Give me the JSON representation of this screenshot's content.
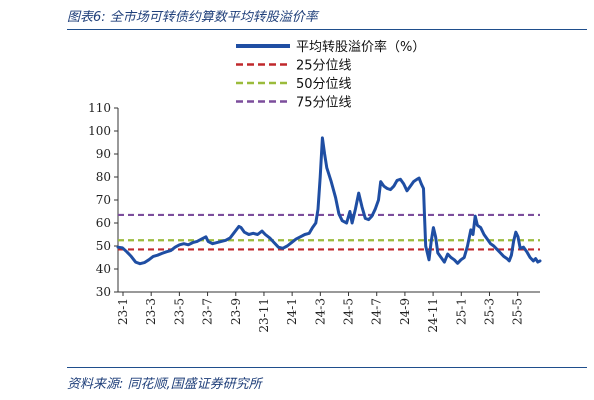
{
  "figure": {
    "title": "图表6:  全市场可转债约算数平均转股溢价率",
    "source": "资料来源:  同花顺,国盛证券研究所"
  },
  "chart_data": {
    "type": "line",
    "title": "图表6:  全市场可转债约算数平均转股溢价率",
    "xlabel": "",
    "ylabel": "",
    "ylim": [
      30,
      110
    ],
    "yticks": [
      30,
      40,
      50,
      60,
      70,
      80,
      90,
      100,
      110
    ],
    "xticks": [
      "23-1",
      "23-3",
      "23-5",
      "23-7",
      "23-9",
      "23-11",
      "24-1",
      "24-3",
      "24-5",
      "24-7",
      "24-9",
      "24-11",
      "25-1",
      "25-3",
      "25-5"
    ],
    "legend_position": "top",
    "grid": false,
    "series": [
      {
        "name": "平均转股溢价率（%）",
        "style": "solid",
        "color": "#1f4ea3",
        "points": [
          [
            0.0,
            49.5
          ],
          [
            0.2,
            49.2
          ],
          [
            0.4,
            47.5
          ],
          [
            0.6,
            45.5
          ],
          [
            0.8,
            43.0
          ],
          [
            1.0,
            42.3
          ],
          [
            1.2,
            42.8
          ],
          [
            1.4,
            44.0
          ],
          [
            1.6,
            45.5
          ],
          [
            1.8,
            46.0
          ],
          [
            2.0,
            46.8
          ],
          [
            2.2,
            47.5
          ],
          [
            2.4,
            48.0
          ],
          [
            2.6,
            49.5
          ],
          [
            2.8,
            50.5
          ],
          [
            3.0,
            51.0
          ],
          [
            3.2,
            50.5
          ],
          [
            3.4,
            51.5
          ],
          [
            3.6,
            52.0
          ],
          [
            3.8,
            53.0
          ],
          [
            4.0,
            54.0
          ],
          [
            4.1,
            52.0
          ],
          [
            4.3,
            51.0
          ],
          [
            4.5,
            51.5
          ],
          [
            4.7,
            52.0
          ],
          [
            4.9,
            52.5
          ],
          [
            5.1,
            53.5
          ],
          [
            5.3,
            56.0
          ],
          [
            5.5,
            58.5
          ],
          [
            5.6,
            58.0
          ],
          [
            5.75,
            56.0
          ],
          [
            5.95,
            55.0
          ],
          [
            6.15,
            55.5
          ],
          [
            6.35,
            55.0
          ],
          [
            6.55,
            56.5
          ],
          [
            6.7,
            55.0
          ],
          [
            6.9,
            53.5
          ],
          [
            7.1,
            51.5
          ],
          [
            7.3,
            49.5
          ],
          [
            7.5,
            49.0
          ],
          [
            7.7,
            50.0
          ],
          [
            7.9,
            51.5
          ],
          [
            8.1,
            53.0
          ],
          [
            8.3,
            54.0
          ],
          [
            8.5,
            55.0
          ],
          [
            8.7,
            55.5
          ],
          [
            8.85,
            58.0
          ],
          [
            9.0,
            60.0
          ],
          [
            9.1,
            66.0
          ],
          [
            9.2,
            80.0
          ],
          [
            9.3,
            97.0
          ],
          [
            9.4,
            90.0
          ],
          [
            9.5,
            84.0
          ],
          [
            9.7,
            78.0
          ],
          [
            9.9,
            71.0
          ],
          [
            10.05,
            64.0
          ],
          [
            10.2,
            61.0
          ],
          [
            10.4,
            60.0
          ],
          [
            10.55,
            65.0
          ],
          [
            10.65,
            60.0
          ],
          [
            10.8,
            66.0
          ],
          [
            10.95,
            73.0
          ],
          [
            11.1,
            67.0
          ],
          [
            11.25,
            62.0
          ],
          [
            11.4,
            61.5
          ],
          [
            11.55,
            63.0
          ],
          [
            11.7,
            66.0
          ],
          [
            11.85,
            70.0
          ],
          [
            11.95,
            78.0
          ],
          [
            12.1,
            76.0
          ],
          [
            12.25,
            75.0
          ],
          [
            12.4,
            74.5
          ],
          [
            12.55,
            76.0
          ],
          [
            12.7,
            78.5
          ],
          [
            12.85,
            79.0
          ],
          [
            13.0,
            77.0
          ],
          [
            13.15,
            74.0
          ],
          [
            13.3,
            76.0
          ],
          [
            13.45,
            78.0
          ],
          [
            13.6,
            79.0
          ],
          [
            13.7,
            79.5
          ],
          [
            13.8,
            77.0
          ],
          [
            13.9,
            75.0
          ],
          [
            13.95,
            62.0
          ],
          [
            14.0,
            50.0
          ],
          [
            14.05,
            48.0
          ],
          [
            14.15,
            44.0
          ],
          [
            14.25,
            52.0
          ],
          [
            14.35,
            58.0
          ],
          [
            14.45,
            54.0
          ],
          [
            14.55,
            47.0
          ],
          [
            14.7,
            45.0
          ],
          [
            14.85,
            43.0
          ],
          [
            15.0,
            46.5
          ],
          [
            15.15,
            45.0
          ],
          [
            15.3,
            44.0
          ],
          [
            15.45,
            42.5
          ],
          [
            15.6,
            44.0
          ],
          [
            15.75,
            45.0
          ],
          [
            15.9,
            50.0
          ],
          [
            16.05,
            57.0
          ],
          [
            16.15,
            55.0
          ],
          [
            16.25,
            63.0
          ],
          [
            16.35,
            59.0
          ],
          [
            16.5,
            58.0
          ],
          [
            16.65,
            55.0
          ],
          [
            16.8,
            53.0
          ],
          [
            16.95,
            51.0
          ],
          [
            17.1,
            50.0
          ],
          [
            17.25,
            48.5
          ],
          [
            17.4,
            47.0
          ],
          [
            17.55,
            45.5
          ],
          [
            17.7,
            44.5
          ],
          [
            17.8,
            43.5
          ],
          [
            17.9,
            46.0
          ],
          [
            18.0,
            52.0
          ],
          [
            18.1,
            56.0
          ],
          [
            18.2,
            54.0
          ],
          [
            18.3,
            49.0
          ],
          [
            18.45,
            49.5
          ],
          [
            18.6,
            47.5
          ],
          [
            18.75,
            45.0
          ],
          [
            18.9,
            43.5
          ],
          [
            19.0,
            44.5
          ],
          [
            19.1,
            43.0
          ],
          [
            19.2,
            43.5
          ]
        ]
      },
      {
        "name": "25分位线",
        "style": "dashed",
        "color": "#c0282c",
        "value": 48.5
      },
      {
        "name": "50分位线",
        "style": "dashed",
        "color": "#9bbb3b",
        "value": 52.5
      },
      {
        "name": "75分位线",
        "style": "dashed",
        "color": "#7c4d9c",
        "value": 63.5
      }
    ]
  }
}
